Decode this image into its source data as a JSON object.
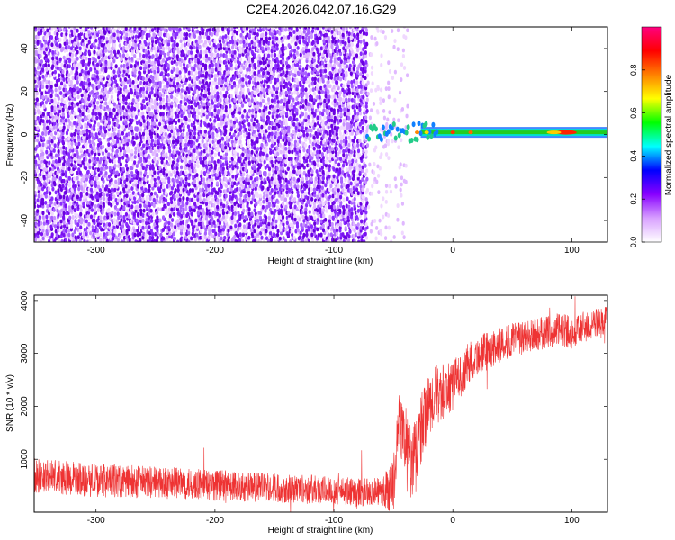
{
  "title": "C2E4.2026.042.07.16.G29",
  "chart_data": [
    {
      "type": "heatmap",
      "xlabel": "Height of straight line (km)",
      "ylabel": "Frequency (Hz)",
      "xlim": [
        -352,
        130
      ],
      "ylim": [
        -50,
        50
      ],
      "xticks": [
        -300,
        -200,
        -100,
        0,
        100
      ],
      "yticks": [
        -40,
        -20,
        0,
        20,
        40
      ],
      "noise_region_x": [
        -352,
        -72
      ],
      "sparse_noise_region_x": [
        -72,
        -38
      ],
      "signal": {
        "x_start": -72,
        "x_end": 130,
        "frequency_hz": 1,
        "peak_x": 95,
        "peak_amplitude": 0.88
      },
      "colorbar": {
        "label": "Normalized spectral amplitude",
        "range": [
          0,
          1
        ],
        "ticks": [
          0.0,
          0.2,
          0.4,
          0.6,
          0.8
        ],
        "colors": [
          "#ffffff",
          "#d8a0ff",
          "#8800ff",
          "#0000ff",
          "#00ffff",
          "#00ff00",
          "#ffff00",
          "#ff8000",
          "#ff0000",
          "#ff0080"
        ]
      },
      "grid": false
    },
    {
      "type": "line",
      "xlabel": "Height of straight line (km)",
      "ylabel": "SNR (10 * v/v)",
      "xlim": [
        -352,
        130
      ],
      "ylim": [
        0,
        4100
      ],
      "xticks": [
        -300,
        -200,
        -100,
        0,
        100
      ],
      "yticks": [
        1000,
        2000,
        3000,
        4000
      ],
      "color": "#ee3333",
      "points": [
        [
          -352,
          700
        ],
        [
          -330,
          650
        ],
        [
          -300,
          600
        ],
        [
          -270,
          580
        ],
        [
          -240,
          550
        ],
        [
          -210,
          520
        ],
        [
          -180,
          490
        ],
        [
          -150,
          460
        ],
        [
          -120,
          430
        ],
        [
          -100,
          410
        ],
        [
          -80,
          380
        ],
        [
          -60,
          380
        ],
        [
          -50,
          500
        ],
        [
          -45,
          1700
        ],
        [
          -40,
          1400
        ],
        [
          -35,
          900
        ],
        [
          -30,
          1200
        ],
        [
          -25,
          1700
        ],
        [
          -20,
          2000
        ],
        [
          -15,
          2200
        ],
        [
          -10,
          2250
        ],
        [
          -5,
          2300
        ],
        [
          0,
          2400
        ],
        [
          5,
          2550
        ],
        [
          10,
          2700
        ],
        [
          15,
          2850
        ],
        [
          20,
          2950
        ],
        [
          30,
          3050
        ],
        [
          40,
          3150
        ],
        [
          50,
          3250
        ],
        [
          60,
          3300
        ],
        [
          70,
          3350
        ],
        [
          80,
          3400
        ],
        [
          90,
          3450
        ],
        [
          100,
          3400
        ],
        [
          110,
          3500
        ],
        [
          120,
          3550
        ],
        [
          130,
          3600
        ]
      ],
      "noise_amplitude": [
        [
          -352,
          550
        ],
        [
          -100,
          450
        ],
        [
          -60,
          450
        ],
        [
          -50,
          900
        ],
        [
          -30,
          1200
        ],
        [
          -10,
          900
        ],
        [
          10,
          700
        ],
        [
          40,
          550
        ],
        [
          130,
          500
        ]
      ],
      "grid": false
    }
  ]
}
